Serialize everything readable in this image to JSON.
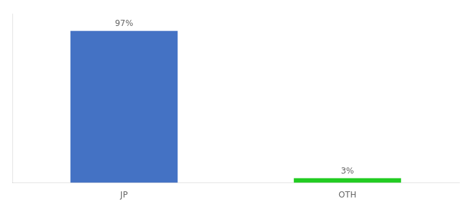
{
  "chart_data": {
    "type": "bar",
    "categories": [
      "JP",
      "OTH"
    ],
    "values": [
      97,
      3
    ],
    "value_labels": [
      "97%",
      "3%"
    ],
    "colors": [
      "#4472c4",
      "#22cc22"
    ],
    "ylim": [
      0,
      108
    ],
    "grid": false,
    "data_labels": true,
    "tick_labels": "x"
  }
}
